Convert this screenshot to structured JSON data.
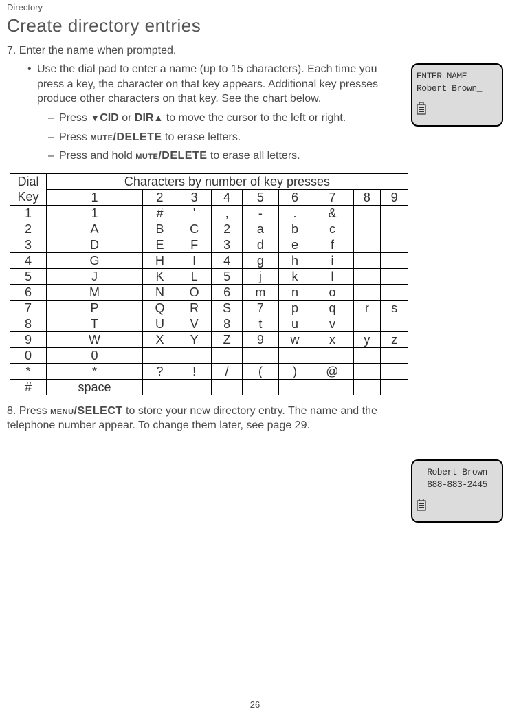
{
  "header": {
    "section_label": "Directory",
    "title": "Create directory entries"
  },
  "step7": {
    "line": "7. Enter the name when prompted.",
    "bullet": "Use the dial pad to enter a name (up to 15 characters). Each time you press a key, the character on that key appears. Additional key presses produce other characters on that key. See the chart below.",
    "sub1_pre": "Press ",
    "sub1_cid": "CID",
    "sub1_or": " or ",
    "sub1_dir": "DIR",
    "sub1_post": " to move the cursor to the left or right.",
    "sub2_pre": "Press ",
    "sub2_key": "mute/DELETE",
    "sub2_post": " to erase letters.",
    "sub3_pre": "Press and hold ",
    "sub3_key": "mute/DELETE",
    "sub3_post": " to erase all letters."
  },
  "lcd1": {
    "line1": "ENTER NAME",
    "line2": "Robert Brown_"
  },
  "table": {
    "corner_l1": "Dial",
    "corner_l2": "Key",
    "span_header": "Characters by number of key presses",
    "cols": [
      "1",
      "2",
      "3",
      "4",
      "5",
      "6",
      "7",
      "8",
      "9"
    ],
    "rows": [
      {
        "k": "1",
        "c": [
          "1",
          "#",
          "'",
          ",",
          "-",
          ".",
          "&",
          "",
          ""
        ]
      },
      {
        "k": "2",
        "c": [
          "A",
          "B",
          "C",
          "2",
          "a",
          "b",
          "c",
          "",
          ""
        ]
      },
      {
        "k": "3",
        "c": [
          "D",
          "E",
          "F",
          "3",
          "d",
          "e",
          "f",
          "",
          ""
        ]
      },
      {
        "k": "4",
        "c": [
          "G",
          "H",
          "I",
          "4",
          "g",
          "h",
          "i",
          "",
          ""
        ]
      },
      {
        "k": "5",
        "c": [
          "J",
          "K",
          "L",
          "5",
          "j",
          "k",
          "l",
          "",
          ""
        ]
      },
      {
        "k": "6",
        "c": [
          "M",
          "N",
          "O",
          "6",
          "m",
          "n",
          "o",
          "",
          ""
        ]
      },
      {
        "k": "7",
        "c": [
          "P",
          "Q",
          "R",
          "S",
          "7",
          "p",
          "q",
          "r",
          "s"
        ]
      },
      {
        "k": "8",
        "c": [
          "T",
          "U",
          "V",
          "8",
          "t",
          "u",
          "v",
          "",
          ""
        ]
      },
      {
        "k": "9",
        "c": [
          "W",
          "X",
          "Y",
          "Z",
          "9",
          "w",
          "x",
          "y",
          "z"
        ]
      },
      {
        "k": "0",
        "c": [
          "0",
          "",
          "",
          "",
          "",
          "",
          "",
          "",
          ""
        ]
      },
      {
        "k": "*",
        "c": [
          "*",
          "?",
          "!",
          "/",
          "(",
          ")",
          "@",
          "",
          ""
        ]
      },
      {
        "k": "#",
        "c": [
          "space",
          "",
          "",
          "",
          "",
          "",
          "",
          "",
          ""
        ]
      }
    ]
  },
  "step8": {
    "pre": "8. Press ",
    "key": "menu/SELECT",
    "post": " to store your new directory entry. The name and the telephone number appear. To change them later, see page 29."
  },
  "lcd2": {
    "line1": "Robert Brown",
    "line2": "888-883-2445"
  },
  "page_number": "26"
}
